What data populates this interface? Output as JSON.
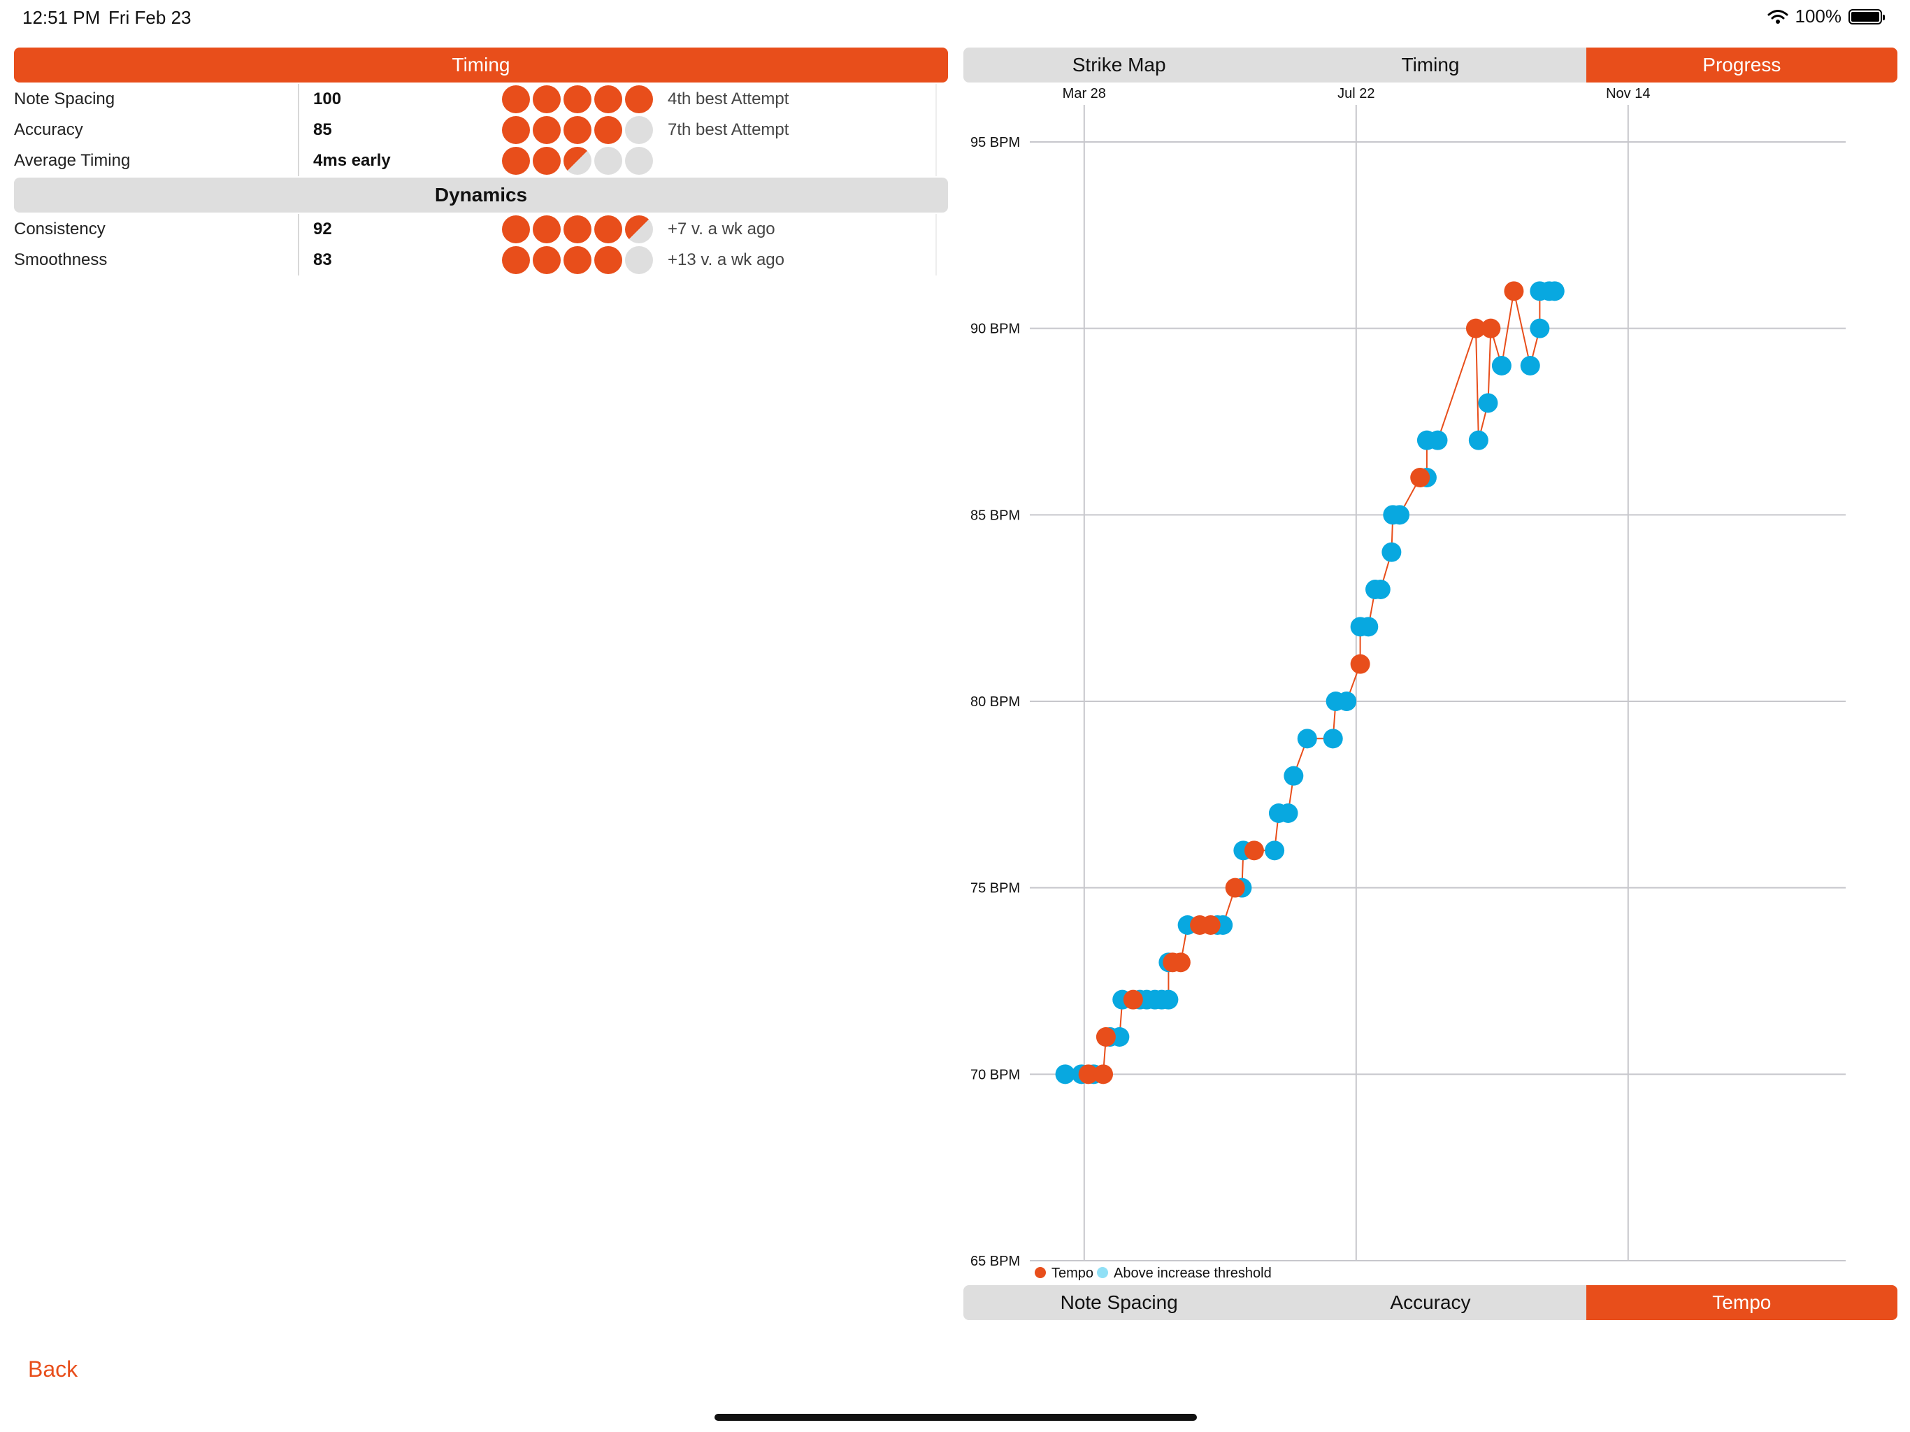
{
  "status_bar": {
    "time": "12:51 PM",
    "date": "Fri Feb 23",
    "battery": "100%"
  },
  "timing_section": {
    "header": "Timing",
    "rows": [
      {
        "label": "Note Spacing",
        "value": "100",
        "rating": 5,
        "note": "4th best Attempt"
      },
      {
        "label": "Accuracy",
        "value": "85",
        "rating": 4,
        "note": "7th best Attempt"
      },
      {
        "label": "Average Timing",
        "value": "4ms early",
        "rating": 2.5,
        "note": ""
      }
    ]
  },
  "dynamics_section": {
    "header": "Dynamics",
    "rows": [
      {
        "label": "Consistency",
        "value": "92",
        "rating": 4.5,
        "note": "+7 v. a wk ago"
      },
      {
        "label": "Smoothness",
        "value": "83",
        "rating": 4,
        "note": "+13 v. a wk ago"
      }
    ]
  },
  "top_tabs": {
    "items": [
      "Strike Map",
      "Timing",
      "Progress"
    ],
    "active": "Progress"
  },
  "bottom_tabs": {
    "items": [
      "Note  Spacing",
      "Accuracy",
      "Tempo"
    ],
    "active": "Tempo"
  },
  "back_label": "Back",
  "colors": {
    "accent": "#E84E1B",
    "tempo": "#E84E1B",
    "threshold": "#08A8E0",
    "gray": "#DEDEDE"
  },
  "chart_data": {
    "type": "scatter",
    "title": "",
    "xlabel": "",
    "ylabel": "",
    "x_tick_labels": [
      "Mar 28",
      "Jul 22",
      "Nov 14"
    ],
    "y_tick_labels": [
      "95 BPM",
      "90 BPM",
      "85 BPM",
      "80 BPM",
      "75 BPM",
      "70 BPM",
      "65 BPM"
    ],
    "ylim": [
      65,
      95
    ],
    "xlim": [
      -4,
      56
    ],
    "grid": true,
    "legend_position": "bottom-left",
    "series": [
      {
        "name": "Tempo",
        "color": "#E84E1B",
        "points": [
          [
            0.3,
            70
          ],
          [
            1.4,
            70
          ],
          [
            1.6,
            71
          ],
          [
            3.6,
            72
          ],
          [
            6.5,
            73
          ],
          [
            7.1,
            73
          ],
          [
            8.5,
            74
          ],
          [
            9.3,
            74
          ],
          [
            11.1,
            75
          ],
          [
            12.5,
            76
          ],
          [
            20.3,
            81
          ],
          [
            24.7,
            86
          ],
          [
            28.8,
            90
          ],
          [
            29.9,
            90
          ],
          [
            31.6,
            91
          ]
        ]
      },
      {
        "name": "Above increase threshold",
        "color": "#08A8E0",
        "points": [
          [
            -1.4,
            70
          ],
          [
            -0.2,
            70
          ],
          [
            0.7,
            70
          ],
          [
            1.9,
            71
          ],
          [
            2.6,
            71
          ],
          [
            2.8,
            72
          ],
          [
            4.1,
            72
          ],
          [
            4.6,
            72
          ],
          [
            5.2,
            72
          ],
          [
            5.7,
            72
          ],
          [
            6.2,
            72
          ],
          [
            6.2,
            73
          ],
          [
            7.6,
            74
          ],
          [
            9.8,
            74
          ],
          [
            10.2,
            74
          ],
          [
            11.6,
            75
          ],
          [
            11.7,
            76
          ],
          [
            14.0,
            76
          ],
          [
            14.3,
            77
          ],
          [
            15.0,
            77
          ],
          [
            15.4,
            78
          ],
          [
            16.4,
            79
          ],
          [
            18.3,
            79
          ],
          [
            18.5,
            80
          ],
          [
            19.3,
            80
          ],
          [
            20.3,
            82
          ],
          [
            20.9,
            82
          ],
          [
            21.4,
            83
          ],
          [
            21.8,
            83
          ],
          [
            22.6,
            84
          ],
          [
            22.7,
            85
          ],
          [
            23.2,
            85
          ],
          [
            25.2,
            86
          ],
          [
            25.2,
            87
          ],
          [
            26.0,
            87
          ],
          [
            29.0,
            87
          ],
          [
            29.7,
            88
          ],
          [
            30.7,
            89
          ],
          [
            32.8,
            89
          ],
          [
            33.5,
            90
          ],
          [
            33.5,
            91
          ],
          [
            34.2,
            91
          ],
          [
            34.6,
            91
          ]
        ]
      }
    ]
  }
}
